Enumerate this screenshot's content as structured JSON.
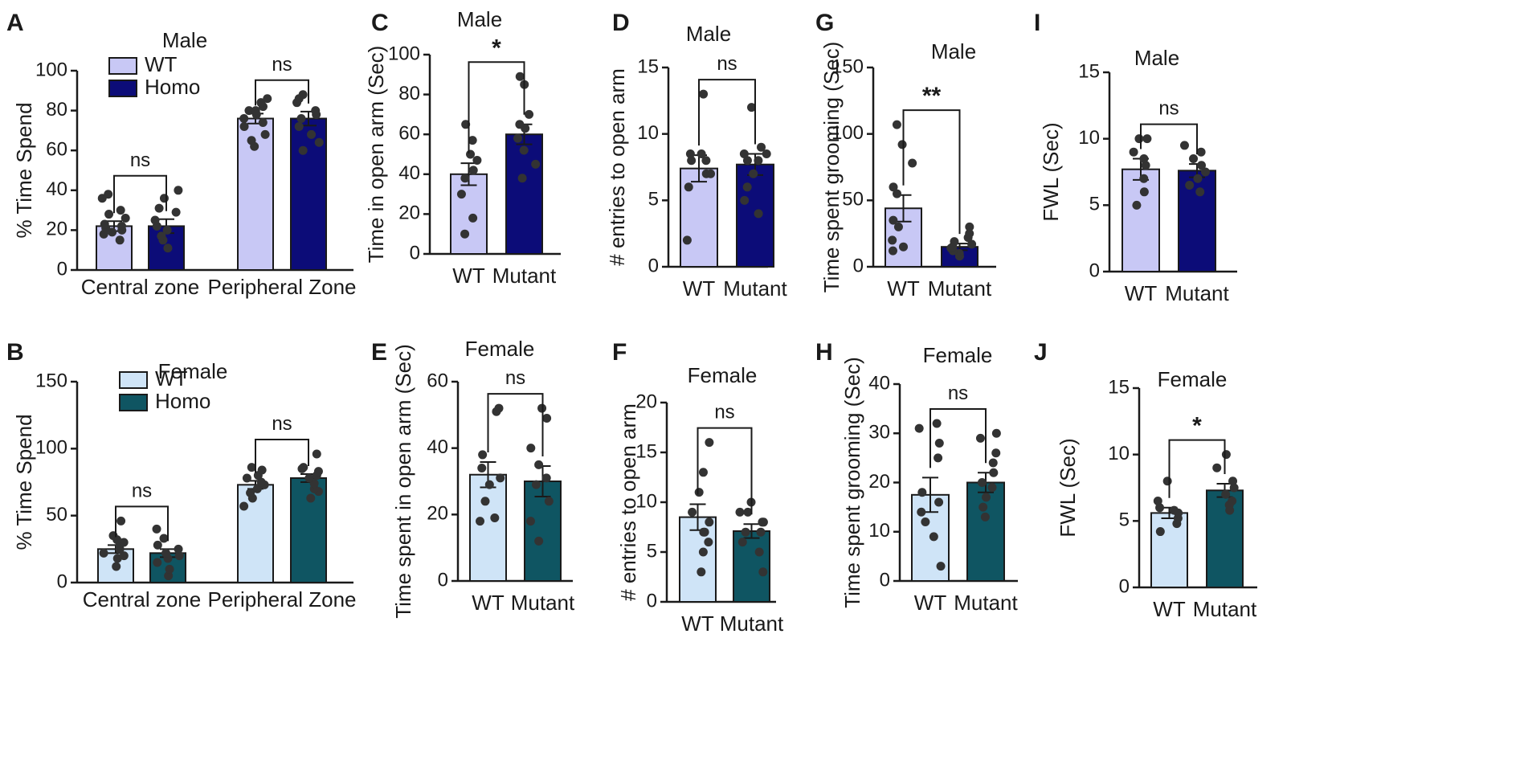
{
  "figure": {
    "colors": {
      "wt_male": "#c8c8f5",
      "homo_male": "#0c0c78",
      "wt_female": "#cfe4f7",
      "homo_female": "#0f5562",
      "dot": "#333333",
      "axis": "#1a1a1a"
    }
  },
  "chart_data": [
    {
      "panel": "A",
      "type": "bar",
      "title": "Male",
      "ylabel": "% Time Spend",
      "ylim": [
        0,
        100
      ],
      "yticks": [
        "0",
        "20",
        "40",
        "60",
        "80",
        "100"
      ],
      "categories": [
        "Central zone",
        "Peripheral Zone"
      ],
      "legend": [
        "WT",
        "Homo"
      ],
      "colors": [
        "#c8c8f5",
        "#0c0c78"
      ],
      "series": [
        {
          "name": "WT",
          "means": [
            22,
            76
          ],
          "sem": [
            2.5,
            2.5
          ],
          "points": [
            [
              15,
              18,
              19,
              20,
              21,
              22,
              23,
              26,
              28,
              30,
              36,
              38
            ],
            [
              62,
              65,
              68,
              72,
              74,
              76,
              78,
              80,
              80,
              82,
              84,
              86
            ]
          ]
        },
        {
          "name": "Homo",
          "means": [
            22,
            76
          ],
          "sem": [
            3.5,
            3.5
          ],
          "points": [
            [
              11,
              15,
              17,
              20,
              22,
              25,
              29,
              31,
              36,
              40
            ],
            [
              60,
              64,
              68,
              72,
              76,
              78,
              80,
              84,
              86,
              88
            ]
          ]
        }
      ],
      "comparisons": [
        "ns",
        "ns"
      ]
    },
    {
      "panel": "B",
      "type": "bar",
      "title": "Female",
      "ylabel": "% Time Spend",
      "ylim": [
        0,
        150
      ],
      "yticks": [
        "0",
        "50",
        "100",
        "150"
      ],
      "categories": [
        "Central zone",
        "Peripheral Zone"
      ],
      "legend": [
        "WT",
        "Homo"
      ],
      "colors": [
        "#cfe4f7",
        "#0f5562"
      ],
      "series": [
        {
          "name": "WT",
          "means": [
            25,
            73
          ],
          "sem": [
            3,
            3
          ],
          "points": [
            [
              12,
              18,
              20,
              22,
              25,
              28,
              30,
              32,
              35,
              46
            ],
            [
              57,
              63,
              67,
              70,
              73,
              75,
              78,
              80,
              84,
              86
            ]
          ]
        },
        {
          "name": "Homo",
          "means": [
            22,
            78
          ],
          "sem": [
            3,
            3
          ],
          "points": [
            [
              5,
              10,
              15,
              18,
              20,
              22,
              25,
              28,
              33,
              40
            ],
            [
              63,
              68,
              70,
              74,
              78,
              80,
              83,
              85,
              86,
              96
            ]
          ]
        }
      ],
      "comparisons": [
        "ns",
        "ns"
      ]
    },
    {
      "panel": "C",
      "type": "bar",
      "title": "Male",
      "ylabel": "Time in open arm (Sec)",
      "ylim": [
        0,
        100
      ],
      "yticks": [
        "0",
        "20",
        "40",
        "60",
        "80",
        "100"
      ],
      "categories": [
        "WT",
        "Mutant"
      ],
      "colors": [
        "#c8c8f5",
        "#0c0c78"
      ],
      "means": [
        40,
        60
      ],
      "sem": [
        5.5,
        5
      ],
      "points": [
        [
          10,
          18,
          30,
          38,
          42,
          47,
          50,
          57,
          65
        ],
        [
          38,
          45,
          52,
          58,
          63,
          65,
          70,
          85,
          89
        ]
      ],
      "comparison": "*"
    },
    {
      "panel": "D",
      "type": "bar",
      "title": "Male",
      "ylabel": "# entries to open arm",
      "ylim": [
        0,
        15
      ],
      "yticks": [
        "0",
        "5",
        "10",
        "15"
      ],
      "categories": [
        "WT",
        "Mutant"
      ],
      "colors": [
        "#c8c8f5",
        "#0c0c78"
      ],
      "means": [
        7.4,
        7.7
      ],
      "sem": [
        1.0,
        0.8
      ],
      "points": [
        [
          2,
          6,
          7,
          7,
          8,
          8,
          8.5,
          8.5,
          13
        ],
        [
          4,
          5,
          6,
          7,
          8,
          8,
          8.5,
          8.5,
          9,
          12
        ]
      ],
      "comparison": "ns"
    },
    {
      "panel": "E",
      "type": "bar",
      "title": "Female",
      "ylabel": "Time spent in open arm (Sec)",
      "ylim": [
        0,
        60
      ],
      "yticks": [
        "0",
        "20",
        "40",
        "60"
      ],
      "categories": [
        "WT",
        "Mutant"
      ],
      "colors": [
        "#cfe4f7",
        "#0f5562"
      ],
      "means": [
        32,
        30
      ],
      "sem": [
        3.8,
        4.6
      ],
      "points": [
        [
          18,
          19,
          24,
          29,
          31,
          34,
          38,
          51,
          52
        ],
        [
          12,
          18,
          24,
          29,
          31,
          35,
          40,
          49,
          52
        ]
      ],
      "comparison": "ns"
    },
    {
      "panel": "F",
      "type": "bar",
      "title": "Female",
      "ylabel": "# entries to open arm",
      "ylim": [
        0,
        20
      ],
      "yticks": [
        "0",
        "5",
        "10",
        "15",
        "20"
      ],
      "categories": [
        "WT",
        "Mutant"
      ],
      "colors": [
        "#cfe4f7",
        "#0f5562"
      ],
      "means": [
        8.5,
        7.1
      ],
      "sem": [
        1.3,
        0.7
      ],
      "points": [
        [
          3,
          5,
          6,
          7,
          7,
          8,
          9,
          11,
          13,
          16
        ],
        [
          3,
          5,
          6,
          7,
          7,
          8,
          8,
          9,
          9,
          10
        ]
      ],
      "comparison": "ns"
    },
    {
      "panel": "G",
      "type": "bar",
      "title": "Male",
      "ylabel": "Time spent grooming (Sec)",
      "ylim": [
        0,
        150
      ],
      "yticks": [
        "0",
        "50",
        "100",
        "150"
      ],
      "categories": [
        "WT",
        "Mutant"
      ],
      "colors": [
        "#c8c8f5",
        "#0c0c78"
      ],
      "means": [
        44,
        15
      ],
      "sem": [
        10,
        2.5
      ],
      "points": [
        [
          12,
          15,
          20,
          30,
          35,
          55,
          60,
          78,
          92,
          107
        ],
        [
          8,
          10,
          12,
          14,
          15,
          17,
          19,
          22,
          25,
          30
        ]
      ],
      "comparison": "**"
    },
    {
      "panel": "H",
      "type": "bar",
      "title": "Female",
      "ylabel": "Time spent grooming (Sec)",
      "ylim": [
        0,
        40
      ],
      "yticks": [
        "0",
        "10",
        "20",
        "30",
        "40"
      ],
      "categories": [
        "WT",
        "Mutant"
      ],
      "colors": [
        "#cfe4f7",
        "#0f5562"
      ],
      "means": [
        17.5,
        20
      ],
      "sem": [
        3.5,
        2
      ],
      "points": [
        [
          3,
          9,
          12,
          14,
          16,
          18,
          25,
          28,
          31,
          32
        ],
        [
          13,
          15,
          17,
          19,
          20,
          22,
          24,
          26,
          29,
          30
        ]
      ],
      "comparison": "ns"
    },
    {
      "panel": "I",
      "type": "bar",
      "title": "Male",
      "ylabel": "FWL (Sec)",
      "ylim": [
        0,
        15
      ],
      "yticks": [
        "0",
        "5",
        "10",
        "15"
      ],
      "categories": [
        "WT",
        "Mutant"
      ],
      "colors": [
        "#c8c8f5",
        "#0c0c78"
      ],
      "means": [
        7.7,
        7.6
      ],
      "sem": [
        0.8,
        0.5
      ],
      "points": [
        [
          5,
          6,
          7,
          8,
          8.5,
          9,
          10,
          10
        ],
        [
          6,
          6.5,
          7,
          7.5,
          8,
          8.5,
          9,
          9.5
        ]
      ],
      "comparison": "ns"
    },
    {
      "panel": "J",
      "type": "bar",
      "title": "Female",
      "ylabel": "FWL (Sec)",
      "ylim": [
        0,
        15
      ],
      "yticks": [
        "0",
        "5",
        "10",
        "15"
      ],
      "categories": [
        "WT",
        "Mutant"
      ],
      "colors": [
        "#cfe4f7",
        "#0f5562"
      ],
      "means": [
        5.6,
        7.3
      ],
      "sem": [
        0.4,
        0.5
      ],
      "points": [
        [
          4.2,
          4.8,
          5.2,
          5.6,
          5.8,
          6.0,
          6.5,
          8.0
        ],
        [
          5.8,
          6.2,
          6.5,
          7.0,
          7.5,
          8.0,
          9.0,
          10.0
        ]
      ],
      "comparison": "*"
    }
  ]
}
